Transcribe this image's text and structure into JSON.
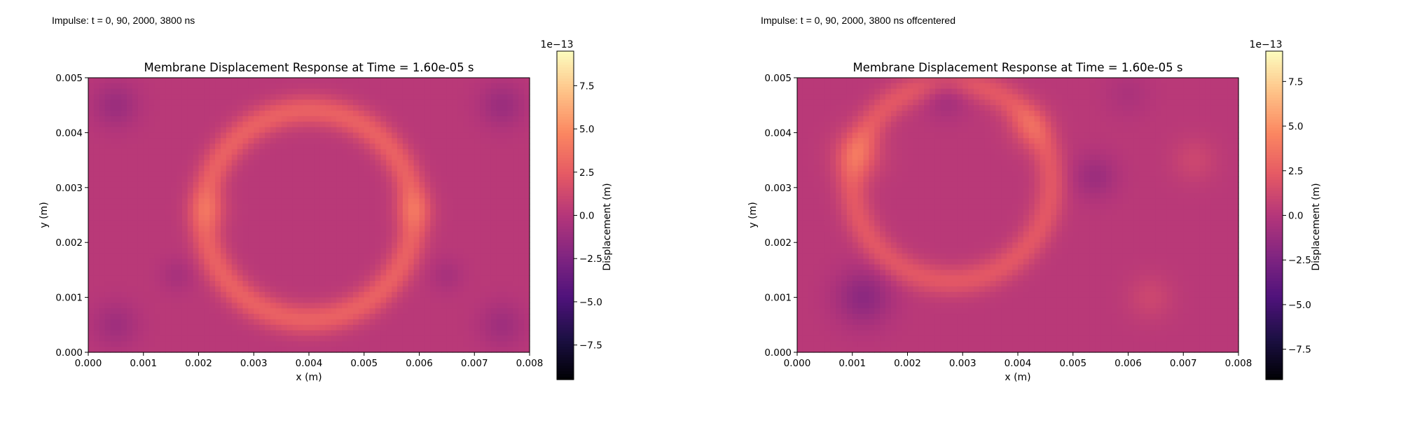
{
  "colormap": {
    "name": "magma",
    "stops": [
      "#000004",
      "#1c1044",
      "#4f127b",
      "#812581",
      "#b5367a",
      "#e55964",
      "#fb8761",
      "#fec287",
      "#fcfdbf"
    ]
  },
  "panels": [
    {
      "caption": "Impulse: t = 0, 90, 2000, 3800 ns",
      "title": "Membrane Displacement Response at Time = 1.60e-05 s",
      "xlabel": "x (m)",
      "ylabel": "y (m)",
      "colorbar_label": "Displacement (m)",
      "colorbar_exponent": "1e−13"
    },
    {
      "caption": "Impulse: t = 0, 90, 2000, 3800 ns offcentered",
      "title": "Membrane Displacement Response at Time = 1.60e-05 s",
      "xlabel": "x (m)",
      "ylabel": "y (m)",
      "colorbar_label": "Displacement (m)",
      "colorbar_exponent": "1e−13"
    }
  ],
  "chart_data": [
    {
      "type": "heatmap",
      "title": "Membrane Displacement Response at Time = 1.60e-05 s",
      "xlabel": "x (m)",
      "ylabel": "y (m)",
      "xlim": [
        0,
        0.008
      ],
      "ylim": [
        0,
        0.005
      ],
      "x_ticks": [
        "0.000",
        "0.001",
        "0.002",
        "0.003",
        "0.004",
        "0.005",
        "0.006",
        "0.007",
        "0.008"
      ],
      "y_ticks": [
        "0.000",
        "0.001",
        "0.002",
        "0.003",
        "0.004",
        "0.005"
      ],
      "colorbar": {
        "label": "Displacement (m)",
        "exponent": "1e−13",
        "range": [
          -9.5,
          9.5
        ],
        "ticks": [
          -7.5,
          -5.0,
          -2.5,
          0.0,
          2.5,
          5.0,
          7.5
        ],
        "tick_labels": [
          "−7.5",
          "−5.0",
          "−2.5",
          "0.0",
          "2.5",
          "5.0",
          "7.5"
        ]
      },
      "background_value": 0.2,
      "features": [
        {
          "kind": "ring",
          "center": [
            0.004,
            0.0025
          ],
          "radius": 0.0019,
          "width": 0.00028,
          "value": 2.6
        },
        {
          "kind": "blob",
          "center": [
            0.0022,
            0.0026
          ],
          "radius": 0.00035,
          "value": 1.2
        },
        {
          "kind": "blob",
          "center": [
            0.0059,
            0.0026
          ],
          "radius": 0.00035,
          "value": 1.2
        },
        {
          "kind": "blob",
          "center": [
            0.0005,
            0.0045
          ],
          "radius": 0.0004,
          "value": -1.4
        },
        {
          "kind": "blob",
          "center": [
            0.0075,
            0.0045
          ],
          "radius": 0.0004,
          "value": -1.4
        },
        {
          "kind": "blob",
          "center": [
            0.0005,
            0.0005
          ],
          "radius": 0.0004,
          "value": -1.2
        },
        {
          "kind": "blob",
          "center": [
            0.0075,
            0.0005
          ],
          "radius": 0.0004,
          "value": -1.2
        },
        {
          "kind": "blob",
          "center": [
            0.0016,
            0.0014
          ],
          "radius": 0.0003,
          "value": -0.8
        },
        {
          "kind": "blob",
          "center": [
            0.0065,
            0.0014
          ],
          "radius": 0.0003,
          "value": -0.8
        }
      ]
    },
    {
      "type": "heatmap",
      "title": "Membrane Displacement Response at Time = 1.60e-05 s",
      "xlabel": "x (m)",
      "ylabel": "y (m)",
      "xlim": [
        0,
        0.008
      ],
      "ylim": [
        0,
        0.005
      ],
      "x_ticks": [
        "0.000",
        "0.001",
        "0.002",
        "0.003",
        "0.004",
        "0.005",
        "0.006",
        "0.007",
        "0.008"
      ],
      "y_ticks": [
        "0.000",
        "0.001",
        "0.002",
        "0.003",
        "0.004",
        "0.005"
      ],
      "colorbar": {
        "label": "Displacement (m)",
        "exponent": "1e−13",
        "range": [
          -9.2,
          9.2
        ],
        "ticks": [
          -7.5,
          -5.0,
          -2.5,
          0.0,
          2.5,
          5.0,
          7.5
        ],
        "tick_labels": [
          "−7.5",
          "−5.0",
          "−2.5",
          "0.0",
          "2.5",
          "5.0",
          "7.5"
        ]
      },
      "background_value": 0.2,
      "features": [
        {
          "kind": "ring",
          "center": [
            0.0028,
            0.0031
          ],
          "radius": 0.0018,
          "width": 0.00028,
          "value": 2.0
        },
        {
          "kind": "blob",
          "center": [
            0.0011,
            0.0036
          ],
          "radius": 0.00045,
          "value": 1.8
        },
        {
          "kind": "blob",
          "center": [
            0.0042,
            0.0041
          ],
          "radius": 0.0004,
          "value": 1.3
        },
        {
          "kind": "blob",
          "center": [
            0.0027,
            0.0047
          ],
          "radius": 0.0004,
          "value": -1.4
        },
        {
          "kind": "blob",
          "center": [
            0.0012,
            0.001
          ],
          "radius": 0.0005,
          "value": -2.0
        },
        {
          "kind": "blob",
          "center": [
            0.0054,
            0.0032
          ],
          "radius": 0.0004,
          "value": -1.3
        },
        {
          "kind": "blob",
          "center": [
            0.0064,
            0.001
          ],
          "radius": 0.0004,
          "value": 0.9
        },
        {
          "kind": "blob",
          "center": [
            0.0072,
            0.0035
          ],
          "radius": 0.0004,
          "value": 0.9
        },
        {
          "kind": "blob",
          "center": [
            0.006,
            0.0047
          ],
          "radius": 0.0004,
          "value": -0.6
        }
      ]
    }
  ]
}
